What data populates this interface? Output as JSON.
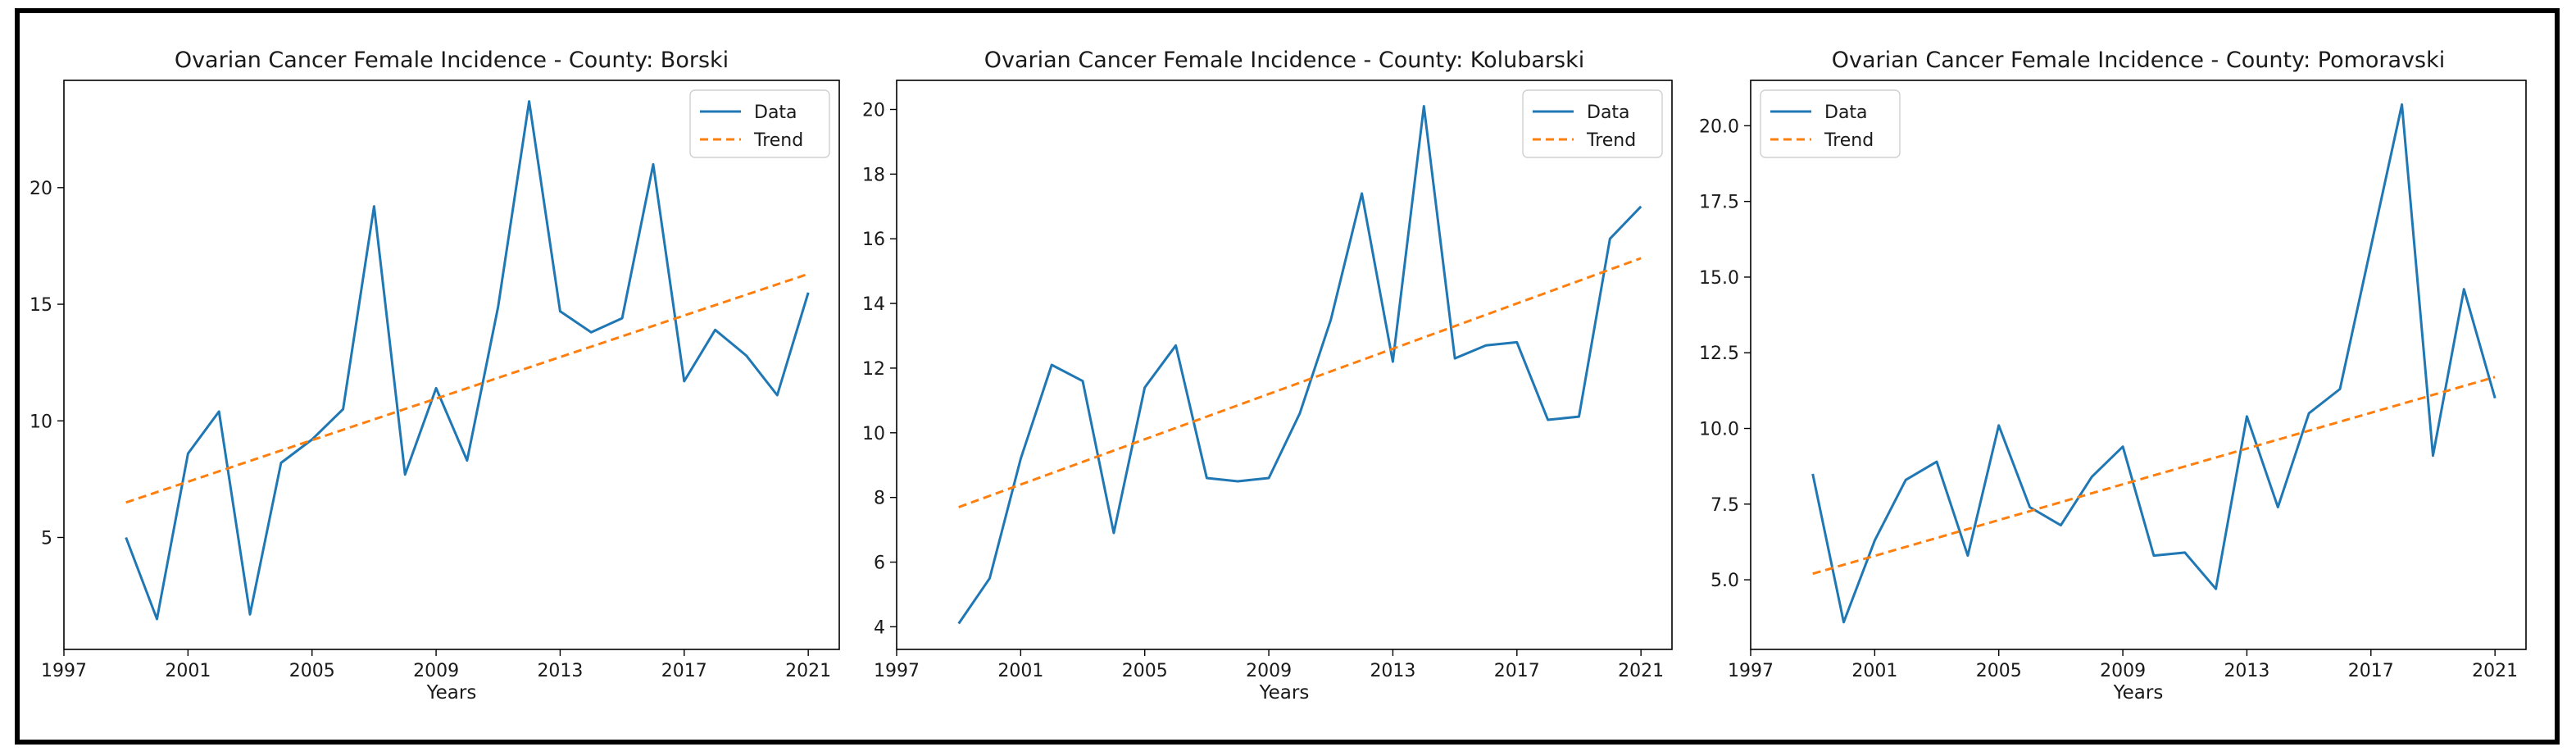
{
  "colors": {
    "data_line": "#1f77b4",
    "trend_line": "#ff7f0e",
    "axis": "#000000"
  },
  "chart_data": [
    {
      "type": "line",
      "title": "Ovarian Cancer Female Incidence - County: Borski",
      "xlabel": "Years",
      "ylabel": "",
      "xlim": [
        1997,
        2022
      ],
      "ylim": [
        0.2,
        24.6
      ],
      "xticks": [
        "1997",
        "2001",
        "2005",
        "2009",
        "2013",
        "2017",
        "2021"
      ],
      "yticks": [
        "5",
        "10",
        "15",
        "20"
      ],
      "legend_position": "top-right",
      "series": [
        {
          "name": "Data",
          "style": "solid",
          "x": [
            1999,
            2000,
            2001,
            2002,
            2003,
            2004,
            2005,
            2006,
            2007,
            2008,
            2009,
            2010,
            2011,
            2012,
            2013,
            2014,
            2015,
            2016,
            2017,
            2018,
            2019,
            2020,
            2021
          ],
          "y": [
            5.0,
            1.5,
            8.6,
            10.4,
            1.7,
            8.2,
            9.2,
            10.5,
            19.2,
            7.7,
            11.4,
            8.3,
            14.9,
            23.7,
            14.7,
            13.8,
            14.4,
            21.0,
            11.7,
            13.9,
            12.8,
            11.1,
            15.5
          ]
        },
        {
          "name": "Trend",
          "style": "dashed",
          "x": [
            1999,
            2021
          ],
          "y": [
            6.5,
            16.3
          ]
        }
      ]
    },
    {
      "type": "line",
      "title": "Ovarian Cancer Female Incidence - County: Kolubarski",
      "xlabel": "Years",
      "ylabel": "",
      "xlim": [
        1997,
        2022
      ],
      "ylim": [
        3.3,
        20.9
      ],
      "xticks": [
        "1997",
        "2001",
        "2005",
        "2009",
        "2013",
        "2017",
        "2021"
      ],
      "yticks": [
        "4",
        "6",
        "8",
        "10",
        "12",
        "14",
        "16",
        "18",
        "20"
      ],
      "legend_position": "top-right",
      "series": [
        {
          "name": "Data",
          "style": "solid",
          "x": [
            1999,
            2000,
            2001,
            2002,
            2003,
            2004,
            2005,
            2006,
            2007,
            2008,
            2009,
            2010,
            2011,
            2012,
            2013,
            2014,
            2015,
            2016,
            2017,
            2018,
            2019,
            2020,
            2021
          ],
          "y": [
            4.1,
            5.5,
            9.2,
            12.1,
            11.6,
            6.9,
            11.4,
            12.7,
            8.6,
            8.5,
            8.6,
            10.6,
            13.5,
            17.4,
            12.2,
            20.1,
            12.3,
            12.7,
            12.8,
            10.4,
            10.5,
            16.0,
            17.0
          ]
        },
        {
          "name": "Trend",
          "style": "dashed",
          "x": [
            1999,
            2021
          ],
          "y": [
            7.7,
            15.4
          ]
        }
      ]
    },
    {
      "type": "line",
      "title": "Ovarian Cancer Female Incidence - County: Pomoravski",
      "xlabel": "Years",
      "ylabel": "",
      "xlim": [
        1997,
        2022
      ],
      "ylim": [
        2.7,
        21.5
      ],
      "xticks": [
        "1997",
        "2001",
        "2005",
        "2009",
        "2013",
        "2017",
        "2021"
      ],
      "yticks": [
        "5.0",
        "7.5",
        "10.0",
        "12.5",
        "15.0",
        "17.5",
        "20.0"
      ],
      "legend_position": "top-left",
      "series": [
        {
          "name": "Data",
          "style": "solid",
          "x": [
            1999,
            2000,
            2001,
            2002,
            2003,
            2004,
            2005,
            2006,
            2007,
            2008,
            2009,
            2010,
            2011,
            2012,
            2013,
            2014,
            2015,
            2016,
            2017,
            2018,
            2019,
            2020,
            2021
          ],
          "y": [
            8.5,
            3.6,
            6.3,
            8.3,
            8.9,
            5.8,
            10.1,
            7.4,
            6.8,
            8.4,
            9.4,
            5.8,
            5.9,
            4.7,
            10.4,
            7.4,
            10.5,
            11.3,
            16.0,
            20.7,
            9.1,
            14.6,
            11.0
          ]
        },
        {
          "name": "Trend",
          "style": "dashed",
          "x": [
            1999,
            2021
          ],
          "y": [
            5.2,
            11.7
          ]
        }
      ]
    }
  ]
}
